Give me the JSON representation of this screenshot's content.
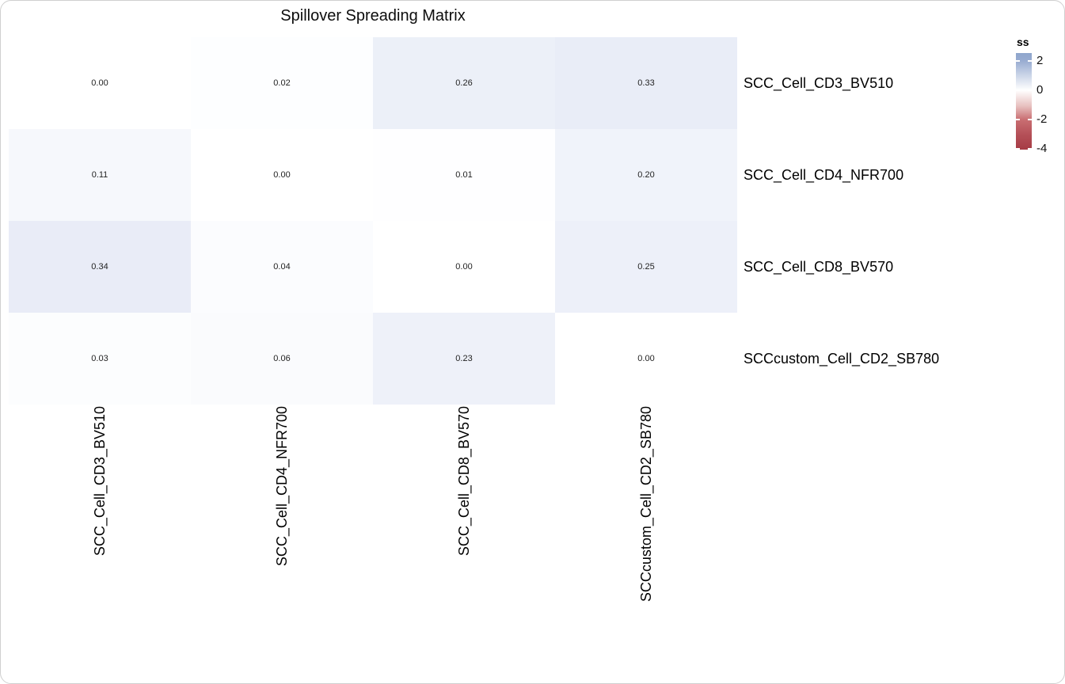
{
  "page": {
    "title": "Spillover Spreading Matrix"
  },
  "legend": {
    "title": "ss",
    "ticks": [
      "2",
      "0",
      "-2",
      "-4"
    ],
    "gradient": [
      {
        "c": "#8ea5cc",
        "p": 0
      },
      {
        "c": "#98acd1",
        "p": 8
      },
      {
        "c": "#ffffff",
        "p": 38.5
      },
      {
        "c": "#e7c0bf",
        "p": 55
      },
      {
        "c": "#c96e72",
        "p": 69
      },
      {
        "c": "#b44f57",
        "p": 85
      },
      {
        "c": "#a63b45",
        "p": 100
      }
    ]
  },
  "chart_data": {
    "type": "heatmap",
    "title": "Spillover Spreading Matrix",
    "legend_label": "ss",
    "legend_tick_values": [
      2,
      0,
      -2,
      -4
    ],
    "legend_range_note": "colorbar spans approx 2.5 (blue) to -4 (dark red), white at 0",
    "rows": [
      "SCC_Cell_CD3_BV510",
      "SCC_Cell_CD4_NFR700",
      "SCC_Cell_CD8_BV570",
      "SCCcustom_Cell_CD2_SB780"
    ],
    "columns": [
      "SCC_Cell_CD3_BV510",
      "SCC_Cell_CD4_NFR700",
      "SCC_Cell_CD8_BV570",
      "SCCcustom_Cell_CD2_SB780"
    ],
    "values": [
      [
        0.0,
        0.02,
        0.26,
        0.33
      ],
      [
        0.11,
        0.0,
        0.01,
        0.2
      ],
      [
        0.34,
        0.04,
        0.0,
        0.25
      ],
      [
        0.03,
        0.06,
        0.23,
        0.0
      ]
    ],
    "display": [
      [
        "0.00",
        "0.02",
        "0.26",
        "0.33"
      ],
      [
        "0.11",
        "0.00",
        "0.01",
        "0.20"
      ],
      [
        "0.34",
        "0.04",
        "0.00",
        "0.25"
      ],
      [
        "0.03",
        "0.06",
        "0.23",
        "0.00"
      ]
    ],
    "cell_colors": [
      [
        "#ffffff",
        "#fdfeff",
        "#ecf0f8",
        "#e9edf7"
      ],
      [
        "#f6f8fc",
        "#ffffff",
        "#fefeff",
        "#f0f3fa"
      ],
      [
        "#e9ecf7",
        "#fbfcfe",
        "#ffffff",
        "#edf0f9"
      ],
      [
        "#fcfdfe",
        "#fafbfd",
        "#eef1f9",
        "#ffffff"
      ]
    ]
  }
}
